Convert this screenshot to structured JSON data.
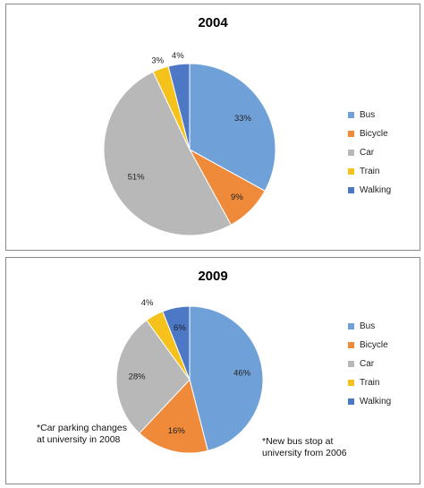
{
  "chart_data": [
    {
      "type": "pie",
      "title": "2004",
      "categories": [
        "Bus",
        "Bicycle",
        "Car",
        "Train",
        "Walking"
      ],
      "values": [
        33,
        9,
        51,
        3,
        4
      ],
      "value_labels": [
        "33%",
        "9%",
        "51%",
        "3%",
        "4%"
      ],
      "colors": [
        "#6fa1d8",
        "#ee8a3a",
        "#b8b8b8",
        "#f5c21b",
        "#4c78c6"
      ],
      "legend": "right",
      "notes": []
    },
    {
      "type": "pie",
      "title": "2009",
      "categories": [
        "Bus",
        "Bicycle",
        "Car",
        "Train",
        "Walking"
      ],
      "values": [
        46,
        16,
        28,
        4,
        6
      ],
      "value_labels": [
        "46%",
        "16%",
        "28%",
        "4%",
        "6%"
      ],
      "colors": [
        "#6fa1d8",
        "#ee8a3a",
        "#b8b8b8",
        "#f5c21b",
        "#4c78c6"
      ],
      "legend": "right",
      "notes": [
        "*Car parking changes at university in 2008",
        "*New bus stop at university from 2006"
      ]
    }
  ]
}
